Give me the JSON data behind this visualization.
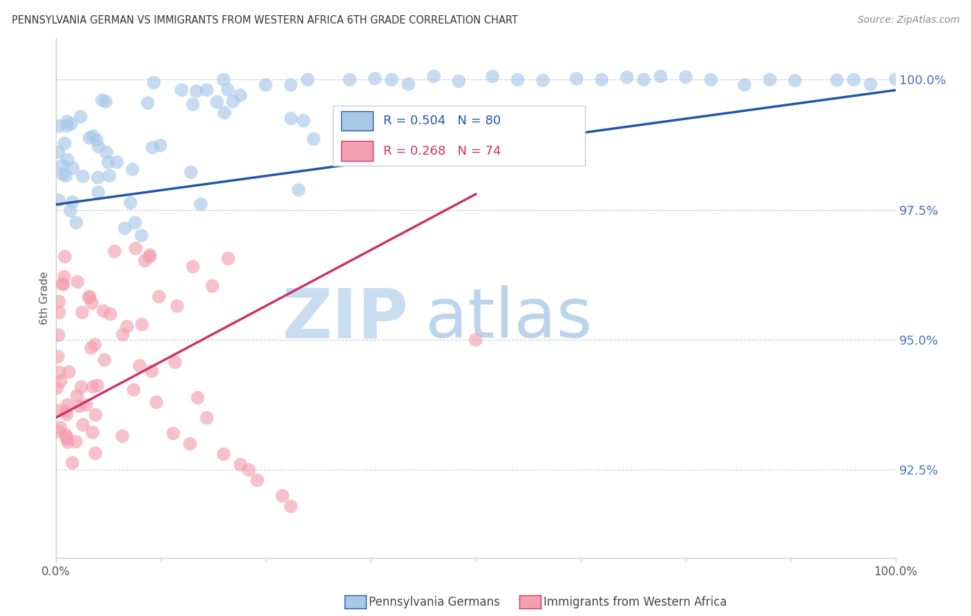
{
  "title": "PENNSYLVANIA GERMAN VS IMMIGRANTS FROM WESTERN AFRICA 6TH GRADE CORRELATION CHART",
  "source": "Source: ZipAtlas.com",
  "ylabel": "6th Grade",
  "yaxis_labels": [
    "100.0%",
    "97.5%",
    "95.0%",
    "92.5%"
  ],
  "yaxis_values": [
    1.0,
    0.975,
    0.95,
    0.925
  ],
  "legend_blue_r": "R = 0.504",
  "legend_blue_n": "N = 80",
  "legend_pink_r": "R = 0.268",
  "legend_pink_n": "N = 74",
  "legend_blue_label": "Pennsylvania Germans",
  "legend_pink_label": "Immigrants from Western Africa",
  "blue_color": "#a8c8e8",
  "pink_color": "#f4a0b0",
  "trendline_blue_color": "#2255aa",
  "trendline_pink_color": "#cc3366",
  "watermark_zip_color": "#c8ddf0",
  "watermark_atlas_color": "#b0cce8",
  "axis_color": "#cccccc",
  "tick_label_color": "#4472c4",
  "title_color": "#333333",
  "source_color": "#888888",
  "ylabel_color": "#555555",
  "xlim": [
    0.0,
    1.0
  ],
  "ylim": [
    0.908,
    1.008
  ],
  "blue_trendline_x": [
    0.0,
    1.0
  ],
  "blue_trendline_y": [
    0.976,
    0.998
  ],
  "pink_trendline_x": [
    0.0,
    0.5
  ],
  "pink_trendline_y": [
    0.935,
    0.978
  ]
}
